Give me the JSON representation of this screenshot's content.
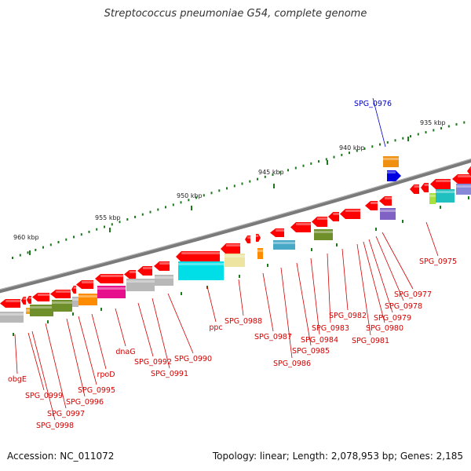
{
  "title": "Streptococcus pneumoniae G54, complete genome",
  "accession_text": "Accession: NC_011072",
  "summary_text": "Topology: linear; Length: 2,078,953 bp; Genes: 2,185",
  "colors": {
    "backbone": "#7a7a7a",
    "gene_forward": "#ff0000",
    "highlight_gene": "#0000e0",
    "label_default": "#d40000",
    "label_highlight": "#0000cc",
    "ruler_tick": "#1c7a1c"
  },
  "ruler": {
    "unit": "kbp",
    "ticks": [
      {
        "label": "935 kbp"
      },
      {
        "label": "940 kbp"
      },
      {
        "label": "945 kbp"
      },
      {
        "label": "950 kbp"
      },
      {
        "label": "955 kbp"
      },
      {
        "label": "960 kbp"
      }
    ]
  },
  "gene_labels": [
    {
      "name": "SPG_0976",
      "highlight": true
    },
    {
      "name": "SPG_0975"
    },
    {
      "name": "SPG_0977"
    },
    {
      "name": "SPG_0978"
    },
    {
      "name": "SPG_0979"
    },
    {
      "name": "SPG_0980"
    },
    {
      "name": "SPG_0981"
    },
    {
      "name": "SPG_0982"
    },
    {
      "name": "SPG_0983"
    },
    {
      "name": "SPG_0984"
    },
    {
      "name": "SPG_0985"
    },
    {
      "name": "SPG_0986"
    },
    {
      "name": "SPG_0987"
    },
    {
      "name": "SPG_0988"
    },
    {
      "name": "ppc"
    },
    {
      "name": "SPG_0990"
    },
    {
      "name": "SPG_0991"
    },
    {
      "name": "SPG_0992"
    },
    {
      "name": "dnaG"
    },
    {
      "name": "rpoD"
    },
    {
      "name": "SPG_0995"
    },
    {
      "name": "SPG_0996"
    },
    {
      "name": "SPG_0997"
    },
    {
      "name": "SPG_0998"
    },
    {
      "name": "SPG_0999"
    },
    {
      "name": "obgE"
    }
  ]
}
